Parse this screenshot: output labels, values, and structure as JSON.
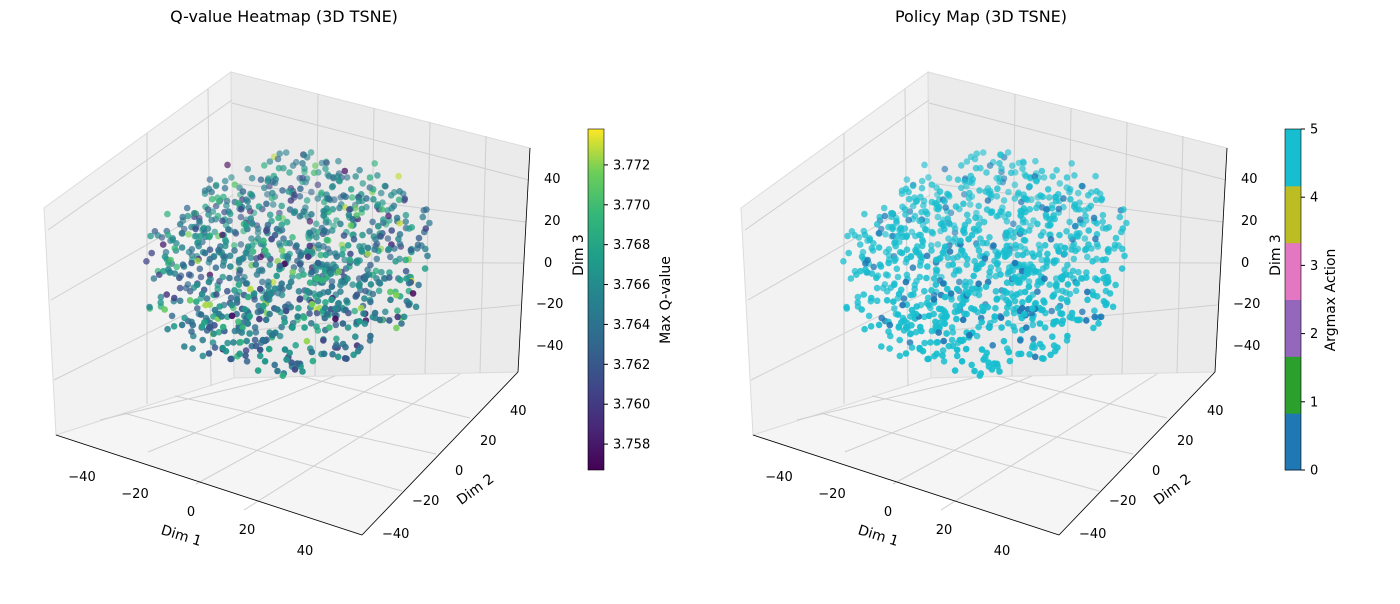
{
  "chart_data": [
    {
      "type": "scatter",
      "projection": "3d",
      "title": "Q-value Heatmap (3D TSNE)",
      "xlabel": "Dim 1",
      "ylabel": "Dim 2",
      "zlabel": "Dim 3",
      "xlim": [
        -50,
        50
      ],
      "ylim": [
        -50,
        50
      ],
      "zlim": [
        -50,
        50
      ],
      "xticks": [
        "−40",
        "−20",
        "0",
        "20",
        "40"
      ],
      "yticks": [
        "−40",
        "−20",
        "0",
        "20",
        "40"
      ],
      "zticks": [
        "−40",
        "−20",
        "0",
        "20",
        "40"
      ],
      "grid": true,
      "colormap": "viridis",
      "colorbar": {
        "label": "Max Q-value",
        "range": [
          3.7567,
          3.7738
        ],
        "ticks": [
          "3.758",
          "3.760",
          "3.762",
          "3.764",
          "3.766",
          "3.768",
          "3.770",
          "3.772"
        ]
      },
      "point_count_estimate": 1000,
      "point_distribution": "roughly uniform sphere, radius ≈ 40",
      "value_summary": {
        "typical": 3.765,
        "min": 3.757,
        "max": 3.773
      }
    },
    {
      "type": "scatter",
      "projection": "3d",
      "title": "Policy Map (3D TSNE)",
      "xlabel": "Dim 1",
      "ylabel": "Dim 2",
      "zlabel": "Dim 3",
      "xlim": [
        -50,
        50
      ],
      "ylim": [
        -50,
        50
      ],
      "zlim": [
        -50,
        50
      ],
      "xticks": [
        "−40",
        "−20",
        "0",
        "20",
        "40"
      ],
      "yticks": [
        "−40",
        "−20",
        "0",
        "20",
        "40"
      ],
      "zticks": [
        "−40",
        "−20",
        "0",
        "20",
        "40"
      ],
      "grid": true,
      "colormap": "tab10 (discrete)",
      "colorbar": {
        "label": "Argmax Action",
        "range": [
          0,
          5
        ],
        "ticks": [
          "0",
          "1",
          "2",
          "3",
          "4",
          "5"
        ],
        "bands": [
          "#1f77b4",
          "#2ca02c",
          "#9467bd",
          "#e377c2",
          "#bcbd22",
          "#17becf"
        ]
      },
      "point_count_estimate": 1000,
      "point_distribution": "roughly uniform sphere, radius ≈ 40",
      "class_summary": {
        "majority_action": 5,
        "majority_color": "#17becf",
        "minority_action": 0,
        "minority_color": "#1f77b4"
      }
    }
  ]
}
